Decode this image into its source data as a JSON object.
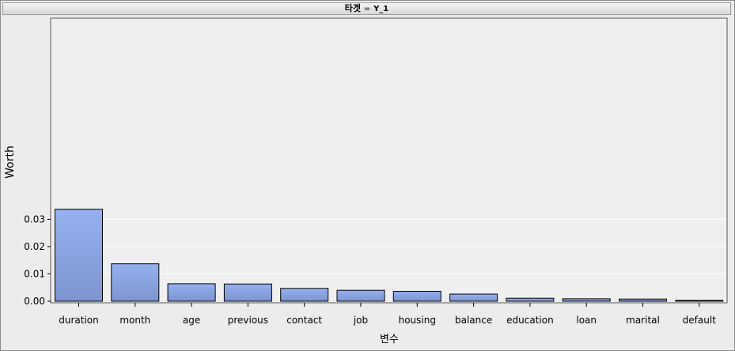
{
  "header": {
    "target_label": "타겟",
    "equals": "=",
    "target_value": "Y_1"
  },
  "colors": {
    "bar_top": "#95b1f1",
    "bar_bottom": "#7d95cf",
    "plot_bg": "#efefef",
    "frame_bg": "#ececec"
  },
  "chart_data": {
    "type": "bar",
    "title": "",
    "xlabel": "변수",
    "ylabel": "Worth",
    "categories": [
      "duration",
      "month",
      "age",
      "previous",
      "contact",
      "job",
      "housing",
      "balance",
      "education",
      "loan",
      "marital",
      "default"
    ],
    "values": [
      0.0337,
      0.0137,
      0.0064,
      0.0063,
      0.0047,
      0.004,
      0.0036,
      0.0026,
      0.0011,
      0.0009,
      0.0008,
      0.0001
    ],
    "ylim": [
      0,
      0.0345
    ],
    "yticks": [
      0,
      0.01,
      0.02,
      0.03
    ],
    "ytick_labels": [
      "0.00",
      "0.01",
      "0.02",
      "0.03"
    ],
    "grid": true,
    "legend": "none"
  }
}
